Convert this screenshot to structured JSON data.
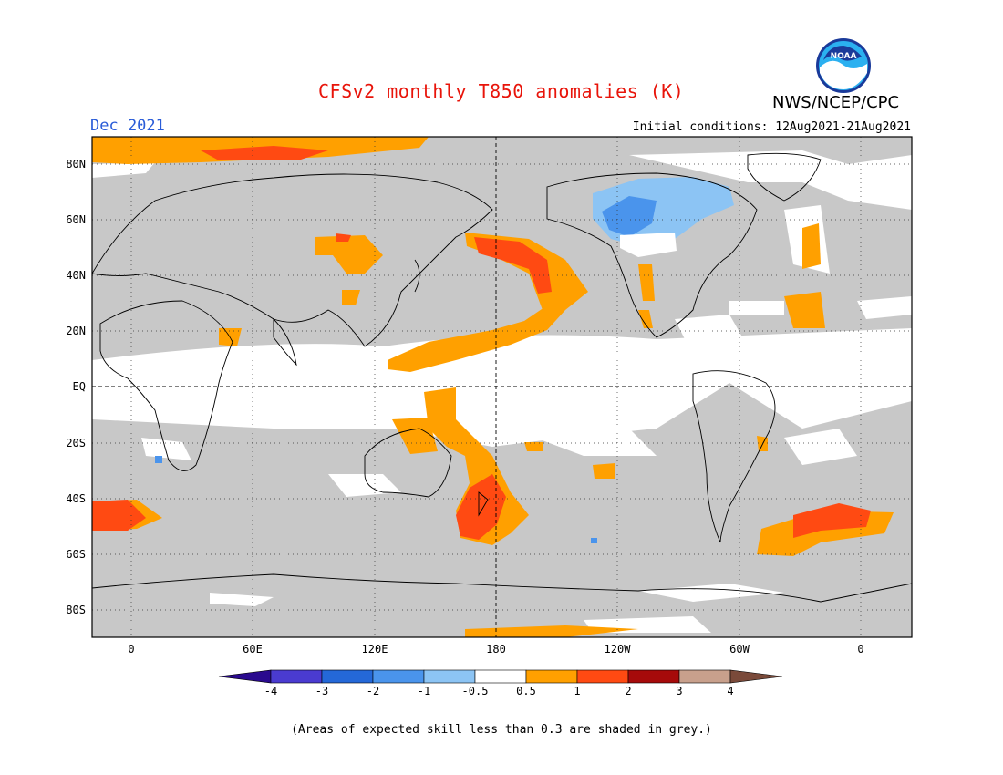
{
  "header": {
    "title": "CFSv2 monthly T850 anomalies (K)",
    "month": "Dec 2021",
    "initial_conditions": "Initial conditions: 12Aug2021-21Aug2021",
    "agency": "NWS/NCEP/CPC",
    "logo_text": "NOAA"
  },
  "map": {
    "lat_labels": [
      "80N",
      "60N",
      "40N",
      "20N",
      "EQ",
      "20S",
      "40S",
      "60S",
      "80S"
    ],
    "lon_labels": [
      "0",
      "60E",
      "120E",
      "180",
      "120W",
      "60W",
      "0"
    ]
  },
  "legend": {
    "tick_labels": [
      "-4",
      "-3",
      "-2",
      "-1",
      "-0.5",
      "0.5",
      "1",
      "2",
      "3",
      "4"
    ],
    "colors": [
      "#2a0a8e",
      "#4a3bd0",
      "#2468d8",
      "#4a94ec",
      "#8cc4f4",
      "#ffffff",
      "#ffa000",
      "#ff4a12",
      "#a60a0a",
      "#c8a08c",
      "#7a4a3a"
    ]
  },
  "footnote": "(Areas of expected skill less than 0.3 are shaded in grey.)"
}
